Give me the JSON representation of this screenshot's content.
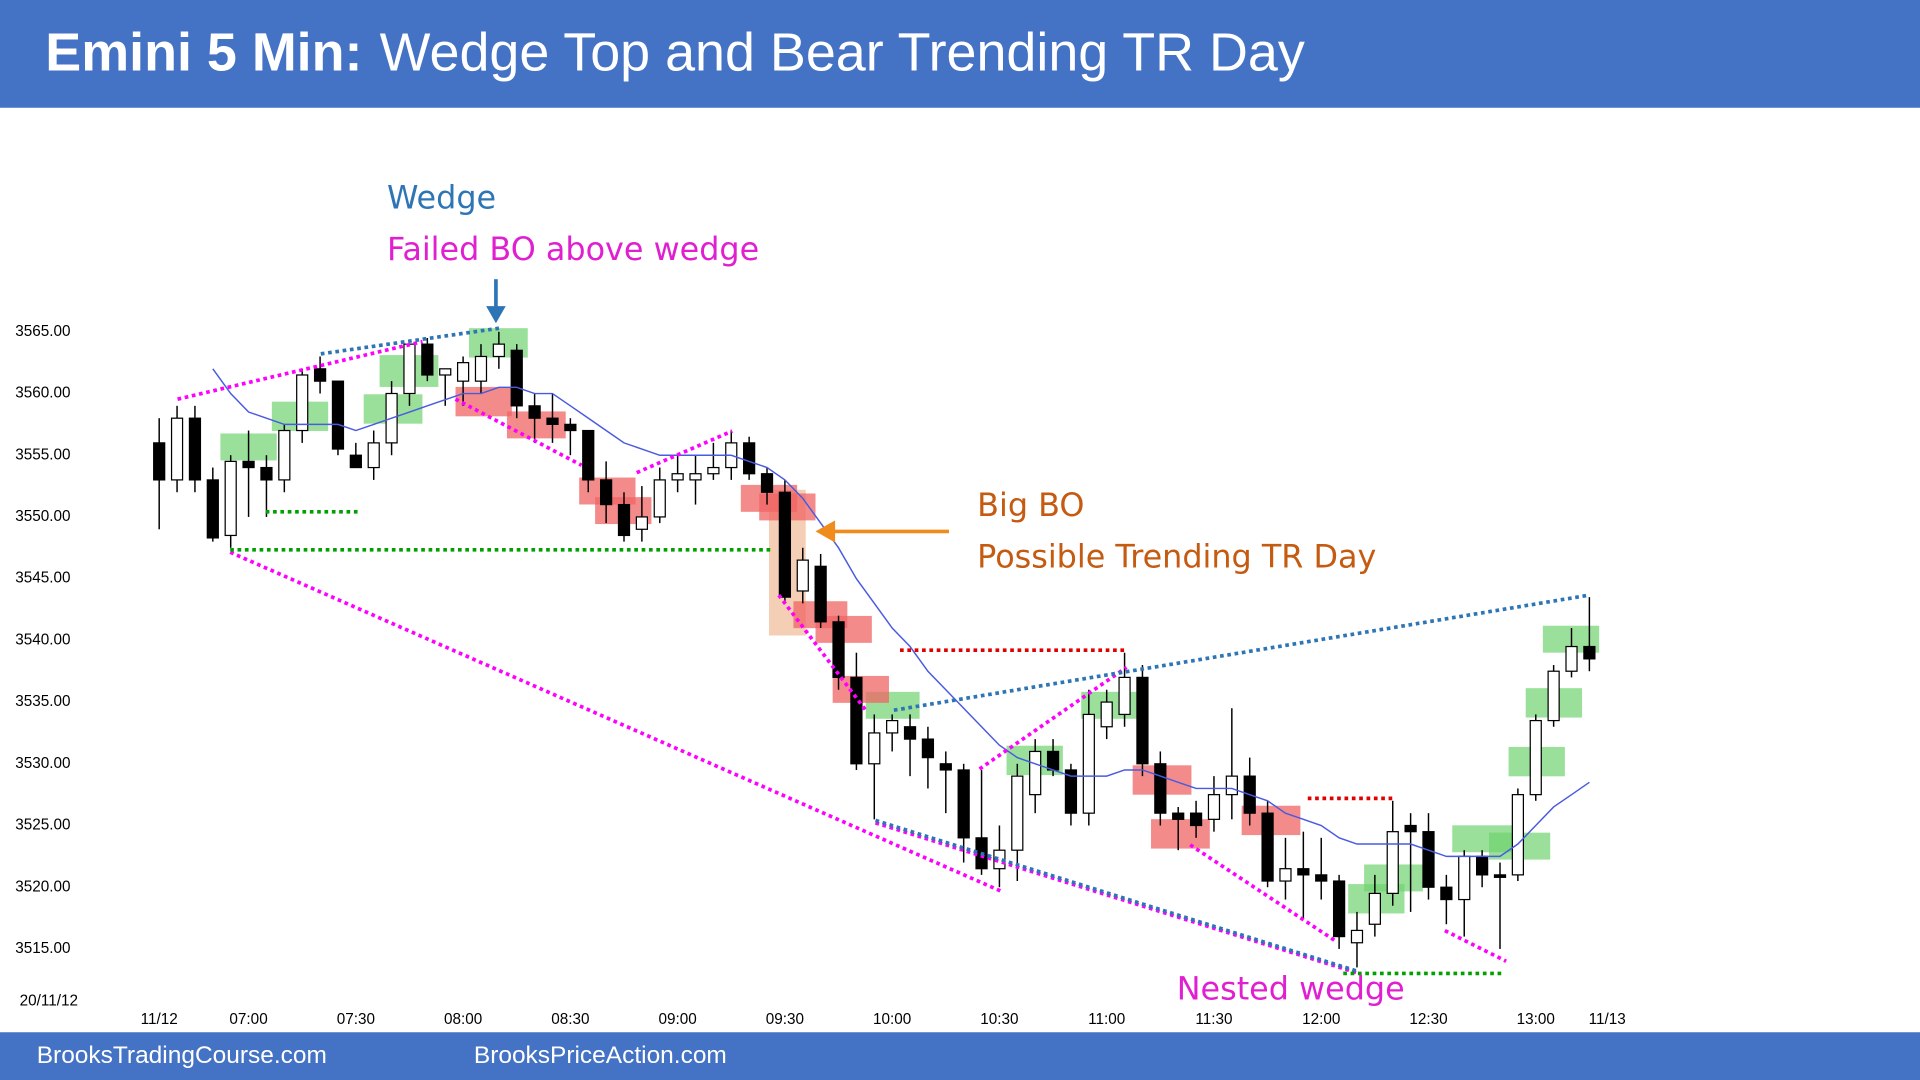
{
  "chart_data": {
    "type": "candlestick",
    "title": "Emini 5 Min:",
    "subtitle": "Wedge Top and Bear Trending TR Day",
    "date_label": "20/11/12",
    "annotations": [
      "Wedge",
      "Failed BO above wedge",
      "Big BO",
      "Possible Trending TR Day",
      "Nested wedge"
    ],
    "categories": [
      "11/12",
      null,
      null,
      null,
      null,
      "07:00",
      null,
      null,
      null,
      null,
      null,
      "07:30",
      null,
      null,
      null,
      null,
      null,
      "08:00",
      null,
      null,
      null,
      null,
      null,
      "08:30",
      null,
      null,
      null,
      null,
      null,
      "09:00",
      null,
      null,
      null,
      null,
      null,
      "09:30",
      null,
      null,
      null,
      null,
      null,
      "10:00",
      null,
      null,
      null,
      null,
      null,
      "10:30",
      null,
      null,
      null,
      null,
      null,
      "11:00",
      null,
      null,
      null,
      null,
      null,
      "11:30",
      null,
      null,
      null,
      null,
      null,
      "12:00",
      null,
      null,
      null,
      null,
      null,
      "12:30",
      null,
      null,
      null,
      null,
      null,
      "13:00",
      null,
      null,
      null,
      "11/13"
    ],
    "open": [
      3556,
      3553,
      3558,
      3553,
      3548.5,
      3554.5,
      3554,
      3553,
      3557,
      3562,
      3561,
      3555,
      3554,
      3556,
      3560,
      3564,
      3561.5,
      3561,
      3561,
      3563,
      3563.5,
      3559,
      3558,
      3557.5,
      3557,
      3553,
      3551,
      3549,
      3550,
      3553,
      3553,
      3553.5,
      3554,
      3556,
      3553.5,
      3552,
      3544,
      3546,
      3541.5,
      3537,
      3530,
      3532.5,
      3533,
      3532,
      3530,
      3529.5,
      3524,
      3521.5,
      3523,
      3527.5,
      3531,
      3529.5,
      3526,
      3533,
      3534,
      3537,
      3530,
      3526,
      3526,
      3525.5,
      3527.5,
      3529,
      3526,
      3520.5,
      3521.5,
      3521,
      3520.5,
      3515.5,
      3517,
      3519.5,
      3525,
      3524.5,
      3520,
      3519,
      3522.5,
      3521,
      3521,
      3527.5,
      3533.5,
      3537.5,
      3539.5,
      null
    ],
    "high": [
      3558,
      3559,
      3559,
      3554,
      3555,
      3557,
      3555,
      3557.5,
      3562,
      3563,
      3561,
      3556,
      3557,
      3561,
      3564,
      3564.5,
      3562,
      3563,
      3564,
      3565,
      3564,
      3560,
      3560,
      3558,
      3557,
      3554.5,
      3552,
      3552.5,
      3554,
      3555,
      3555,
      3556,
      3557,
      3556.5,
      3554,
      3553,
      3547.5,
      3547,
      3542,
      3539,
      3534,
      3534,
      3534,
      3533,
      3531,
      3530,
      3529.5,
      3525,
      3530,
      3532,
      3532,
      3530,
      3536,
      3536,
      3539,
      3538,
      3531,
      3526.5,
      3527,
      3529,
      3534.5,
      3530.5,
      3527,
      3524,
      3524.5,
      3524,
      3521,
      3518,
      3521,
      3527,
      3526,
      3526,
      3521,
      3523,
      3523,
      3522,
      3528,
      3534,
      3538,
      3541,
      3543.5,
      null
    ],
    "low": [
      3549,
      3552,
      3552,
      3548,
      3547.5,
      3550,
      3550,
      3552,
      3556,
      3560,
      3555,
      3554,
      3553,
      3555,
      3559,
      3561,
      3559,
      3559,
      3560,
      3562,
      3558,
      3556,
      3556,
      3555,
      3552,
      3549.5,
      3548,
      3548,
      3549.5,
      3552,
      3551,
      3553,
      3553,
      3553,
      3551,
      3543,
      3543,
      3541,
      3536,
      3529.5,
      3525.5,
      3531,
      3529,
      3528,
      3526,
      3522,
      3521,
      3520,
      3520.5,
      3526,
      3529,
      3525,
      3525,
      3532,
      3533,
      3529,
      3525,
      3523,
      3524,
      3524.5,
      3525.5,
      3525,
      3520,
      3519,
      3517.5,
      3519,
      3515,
      3513.5,
      3516,
      3518.5,
      3518,
      3519,
      3517,
      3516,
      3520,
      3515,
      3520.5,
      3527,
      3533,
      3537,
      3537.5,
      null
    ],
    "close": [
      3553,
      3558,
      3553,
      3548.3,
      3554.5,
      3554,
      3553,
      3557,
      3561.5,
      3561,
      3555.5,
      3554,
      3556,
      3560,
      3564,
      3561.5,
      3562,
      3562.5,
      3563,
      3564,
      3559,
      3558,
      3557.5,
      3557,
      3553,
      3551,
      3548.5,
      3550,
      3553,
      3553.5,
      3553.5,
      3554,
      3556,
      3553.5,
      3552,
      3543.5,
      3546.5,
      3541.5,
      3537,
      3530,
      3532.5,
      3533.5,
      3532,
      3530.5,
      3529.5,
      3524,
      3521.5,
      3523,
      3529,
      3531,
      3529.5,
      3526,
      3534,
      3535,
      3537,
      3530,
      3526,
      3525.5,
      3525,
      3527.5,
      3529,
      3526,
      3520.5,
      3521.5,
      3521,
      3520.5,
      3516,
      3516.5,
      3519.5,
      3524.5,
      3524.5,
      3520,
      3519,
      3522.5,
      3521,
      3520.8,
      3527.5,
      3533.5,
      3537.5,
      3539.5,
      3538.5,
      null
    ],
    "up_color": "#ffffff",
    "down_color": "#000000",
    "ma": {
      "color": "#4a5ae0",
      "values": [
        null,
        null,
        null,
        3562,
        3560,
        3558.5,
        3558,
        3557.5,
        3557.5,
        3557.5,
        3557.5,
        3557,
        3557.5,
        3558,
        3558.5,
        3559,
        3559.5,
        3560,
        3560,
        3560.5,
        3560.5,
        3560,
        3560,
        3559,
        3558,
        3557,
        3556,
        3555.5,
        3555,
        3555,
        3555,
        3555,
        3555,
        3554.5,
        3554,
        3553,
        3551.5,
        3549.5,
        3547.5,
        3545,
        3543,
        3541,
        3539.5,
        3537.5,
        3536,
        3534.5,
        3533,
        3531.5,
        3530.5,
        3530,
        3529.5,
        3529,
        3529,
        3529,
        3529.5,
        3529.5,
        3529,
        3528.5,
        3528,
        3528,
        3528,
        3527.5,
        3527,
        3526,
        3525.5,
        3525,
        3524,
        3523.5,
        3523.5,
        3523.5,
        3523.5,
        3523,
        3522.5,
        3522.5,
        3522.5,
        3522.5,
        3523.5,
        3525,
        3526.5,
        3527.5,
        3528.5,
        null
      ]
    },
    "ylim": [
      3512,
      3567
    ],
    "yticks": [
      {
        "value": 3515,
        "label": "3515.00"
      },
      {
        "value": 3520,
        "label": "3520.00"
      },
      {
        "value": 3525,
        "label": "3525.00"
      },
      {
        "value": 3530,
        "label": "3530.00"
      },
      {
        "value": 3535,
        "label": "3535.00"
      },
      {
        "value": 3540,
        "label": "3540.00"
      },
      {
        "value": 3545,
        "label": "3545.00"
      },
      {
        "value": 3550,
        "label": "3550.00"
      },
      {
        "value": 3555,
        "label": "3555.00"
      },
      {
        "value": 3560,
        "label": "3560.00"
      },
      {
        "value": 3565,
        "label": "3565.00"
      }
    ],
    "grid": false
  },
  "footer": [
    "BrooksTradingCourse.com",
    "BrooksPriceAction.com"
  ]
}
